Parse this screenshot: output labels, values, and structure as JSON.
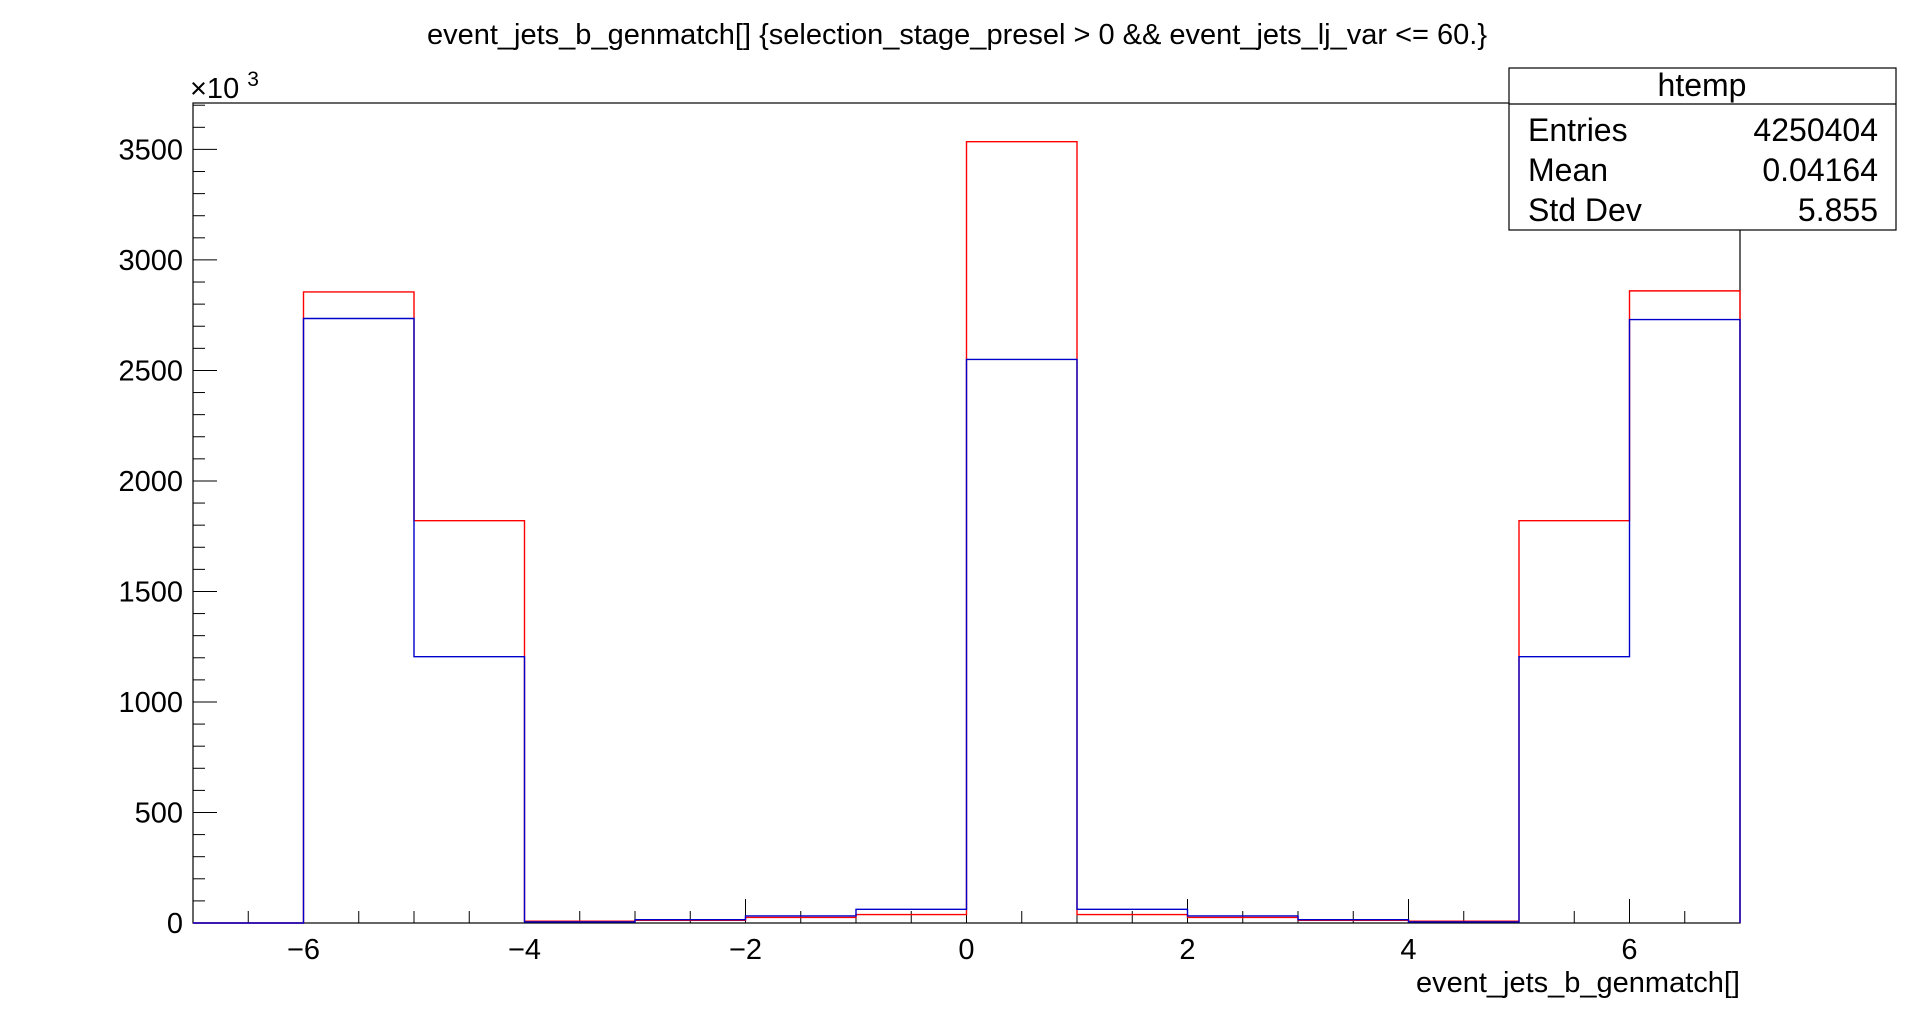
{
  "chart_data": {
    "type": "histogram",
    "title": "event_jets_b_genmatch[] {selection_stage_presel > 0 && event_jets_lj_var <= 60.}",
    "xlabel": "event_jets_b_genmatch[]",
    "ylabel": "",
    "y_multiplier_label": "×10",
    "y_multiplier_exponent": "3",
    "xlim": [
      -7,
      7
    ],
    "ylim": [
      0,
      3710
    ],
    "x_ticks": [
      -6,
      -4,
      -2,
      0,
      2,
      4,
      6
    ],
    "x_tick_labels": [
      "−6",
      "−4",
      "−2",
      "0",
      "2",
      "4",
      "6"
    ],
    "y_ticks": [
      0,
      500,
      1000,
      1500,
      2000,
      2500,
      3000,
      3500
    ],
    "y_tick_labels": [
      "0",
      "500",
      "1000",
      "1500",
      "2000",
      "2500",
      "3000",
      "3500"
    ],
    "bin_edges": [
      -7,
      -6,
      -5,
      -4,
      -3,
      -2,
      -1,
      0,
      1,
      2,
      3,
      4,
      5,
      6,
      7
    ],
    "series": [
      {
        "color": "#ff0000",
        "values": [
          0,
          2855,
          1820,
          8,
          12,
          25,
          38,
          3535,
          38,
          25,
          12,
          8,
          1820,
          2860
        ]
      },
      {
        "color": "#0000cc",
        "values": [
          0,
          2735,
          1205,
          5,
          15,
          32,
          62,
          2550,
          62,
          32,
          15,
          5,
          1205,
          2730
        ]
      }
    ],
    "grid": false,
    "legend": "none",
    "stats_box": {
      "title": "htemp",
      "rows": [
        {
          "label": "Entries",
          "value": "4250404"
        },
        {
          "label": "Mean",
          "value": "0.04164"
        },
        {
          "label": "Std Dev",
          "value": "5.855"
        }
      ]
    }
  }
}
